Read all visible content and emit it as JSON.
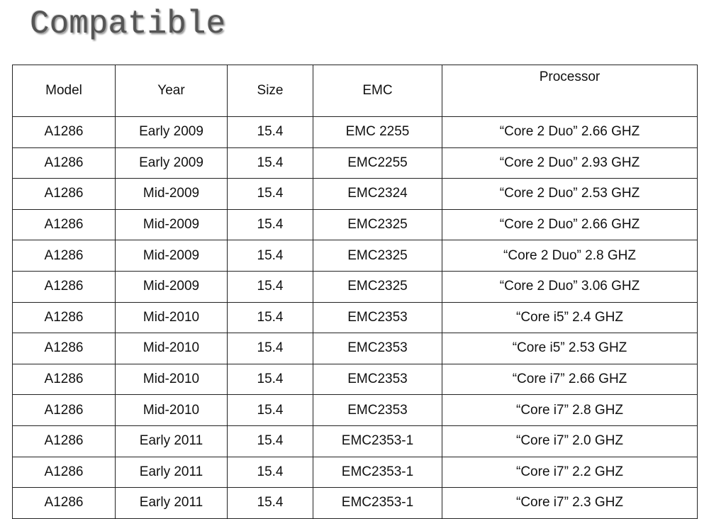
{
  "title": "Compatible",
  "table": {
    "header": [
      "Model",
      "Year",
      "Size",
      "EMC",
      "Processor"
    ],
    "rows": [
      [
        "A1286",
        "Early 2009",
        "15.4",
        "EMC 2255",
        "“Core 2 Duo” 2.66 GHZ"
      ],
      [
        "A1286",
        "Early 2009",
        "15.4",
        "EMC2255",
        "“Core 2 Duo” 2.93 GHZ"
      ],
      [
        "A1286",
        "Mid-2009",
        "15.4",
        "EMC2324",
        "“Core 2 Duo” 2.53 GHZ"
      ],
      [
        "A1286",
        "Mid-2009",
        "15.4",
        "EMC2325",
        "“Core 2 Duo” 2.66 GHZ"
      ],
      [
        "A1286",
        "Mid-2009",
        "15.4",
        "EMC2325",
        "“Core 2 Duo” 2.8 GHZ"
      ],
      [
        "A1286",
        "Mid-2009",
        "15.4",
        "EMC2325",
        "“Core 2 Duo” 3.06 GHZ"
      ],
      [
        "A1286",
        "Mid-2010",
        "15.4",
        "EMC2353",
        "“Core i5” 2.4 GHZ"
      ],
      [
        "A1286",
        "Mid-2010",
        "15.4",
        "EMC2353",
        "“Core i5” 2.53 GHZ"
      ],
      [
        "A1286",
        "Mid-2010",
        "15.4",
        "EMC2353",
        "“Core i7” 2.66 GHZ"
      ],
      [
        "A1286",
        "Mid-2010",
        "15.4",
        "EMC2353",
        "“Core i7” 2.8 GHZ"
      ],
      [
        "A1286",
        "Early 2011",
        "15.4",
        "EMC2353-1",
        "“Core i7” 2.0 GHZ"
      ],
      [
        "A1286",
        "Early 2011",
        "15.4",
        "EMC2353-1",
        "“Core i7” 2.2 GHZ"
      ],
      [
        "A1286",
        "Early 2011",
        "15.4",
        "EMC2353-1",
        "“Core i7” 2.3 GHZ"
      ]
    ]
  }
}
